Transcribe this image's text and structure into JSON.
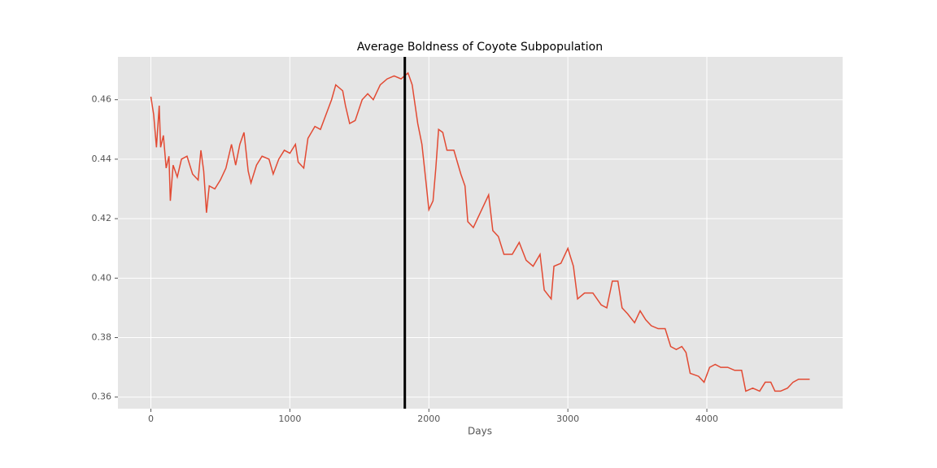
{
  "chart_data": {
    "type": "line",
    "title": "Average Boldness of Coyote Subpopulation",
    "x_label": "Days",
    "x": [
      0,
      20,
      40,
      60,
      70,
      90,
      110,
      130,
      140,
      160,
      190,
      220,
      260,
      300,
      340,
      360,
      380,
      400,
      420,
      460,
      500,
      540,
      580,
      610,
      640,
      670,
      700,
      720,
      760,
      800,
      850,
      880,
      920,
      960,
      1000,
      1040,
      1060,
      1100,
      1130,
      1180,
      1220,
      1260,
      1300,
      1330,
      1380,
      1400,
      1430,
      1470,
      1520,
      1560,
      1600,
      1650,
      1700,
      1750,
      1800,
      1850,
      1880,
      1920,
      1950,
      1980,
      2000,
      2030,
      2050,
      2070,
      2100,
      2130,
      2180,
      2230,
      2260,
      2280,
      2320,
      2350,
      2400,
      2430,
      2460,
      2500,
      2540,
      2600,
      2650,
      2700,
      2750,
      2800,
      2830,
      2880,
      2900,
      2950,
      3000,
      3040,
      3070,
      3120,
      3180,
      3240,
      3280,
      3320,
      3360,
      3390,
      3430,
      3480,
      3520,
      3560,
      3600,
      3650,
      3700,
      3740,
      3780,
      3820,
      3850,
      3880,
      3940,
      3980,
      4020,
      4060,
      4100,
      4150,
      4200,
      4250,
      4280,
      4330,
      4380,
      4420,
      4460,
      4490,
      4530,
      4580,
      4620,
      4660,
      4700,
      4740
    ],
    "series": [
      {
        "color": "#E24A33",
        "values": [
          0.461,
          0.455,
          0.444,
          0.458,
          0.444,
          0.448,
          0.437,
          0.441,
          0.426,
          0.438,
          0.434,
          0.44,
          0.441,
          0.435,
          0.433,
          0.443,
          0.436,
          0.422,
          0.431,
          0.43,
          0.433,
          0.437,
          0.445,
          0.438,
          0.445,
          0.449,
          0.436,
          0.432,
          0.438,
          0.441,
          0.44,
          0.435,
          0.44,
          0.443,
          0.442,
          0.445,
          0.439,
          0.437,
          0.447,
          0.451,
          0.45,
          0.455,
          0.46,
          0.465,
          0.463,
          0.458,
          0.452,
          0.453,
          0.46,
          0.462,
          0.46,
          0.465,
          0.467,
          0.468,
          0.467,
          0.469,
          0.465,
          0.452,
          0.445,
          0.432,
          0.423,
          0.426,
          0.437,
          0.45,
          0.449,
          0.443,
          0.443,
          0.435,
          0.431,
          0.419,
          0.417,
          0.42,
          0.425,
          0.428,
          0.416,
          0.414,
          0.408,
          0.408,
          0.412,
          0.406,
          0.404,
          0.408,
          0.396,
          0.393,
          0.404,
          0.405,
          0.41,
          0.404,
          0.393,
          0.395,
          0.395,
          0.391,
          0.39,
          0.399,
          0.399,
          0.39,
          0.388,
          0.385,
          0.389,
          0.386,
          0.384,
          0.383,
          0.383,
          0.377,
          0.376,
          0.377,
          0.375,
          0.368,
          0.367,
          0.365,
          0.37,
          0.371,
          0.37,
          0.37,
          0.369,
          0.369,
          0.362,
          0.363,
          0.362,
          0.365,
          0.365,
          0.362,
          0.362,
          0.363,
          0.365,
          0.366,
          0.366,
          0.366
        ]
      }
    ],
    "vline": {
      "x": 1827,
      "color": "#000000"
    },
    "xlim": [
      -237,
      4977
    ],
    "xticks": [
      0,
      1000,
      2000,
      3000,
      4000
    ],
    "ylim": [
      0.3561,
      0.4744
    ],
    "yticks": [
      0.36,
      0.38,
      {
        "value": 0.4,
        "label": "0.40"
      },
      0.42,
      0.44,
      0.46
    ],
    "grid": true,
    "background": "#E5E5E5"
  }
}
